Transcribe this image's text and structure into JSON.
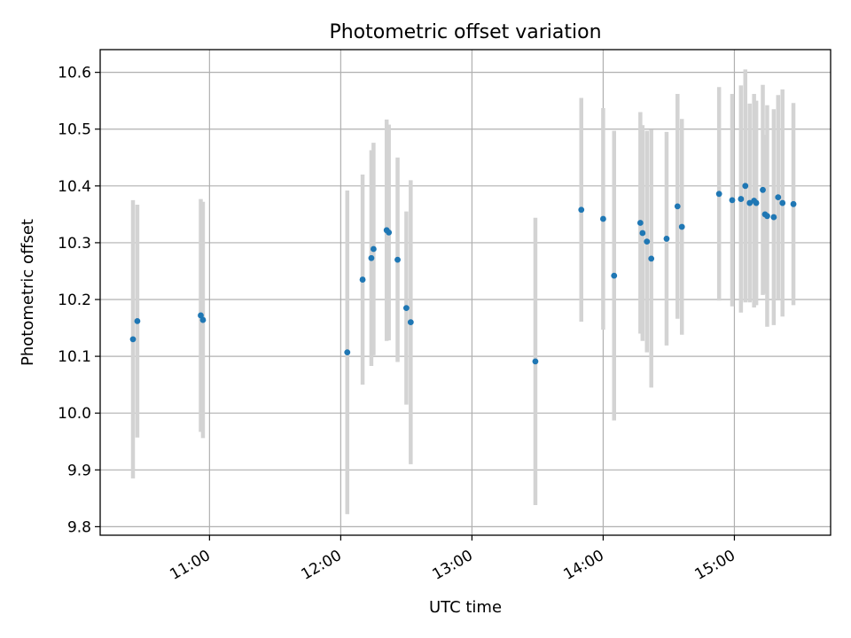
{
  "chart_data": {
    "type": "scatter",
    "title": "Photometric offset variation",
    "xlabel": "UTC time",
    "ylabel": "Photometric offset",
    "x_unit": "hours UTC",
    "xlim": [
      "10:10",
      "15:44"
    ],
    "ylim": [
      9.785,
      10.64
    ],
    "x_ticks": [
      "11:00",
      "12:00",
      "13:00",
      "14:00",
      "15:00"
    ],
    "y_ticks": [
      "9.8",
      "9.9",
      "10.0",
      "10.1",
      "10.2",
      "10.3",
      "10.4",
      "10.5",
      "10.6"
    ],
    "grid": true,
    "marker_color": "#1f77b4",
    "errorbar_color": "#d3d3d3",
    "points": [
      {
        "x": "10:25",
        "y": 10.13,
        "yerr": 0.245
      },
      {
        "x": "10:27",
        "y": 10.162,
        "yerr": 0.205
      },
      {
        "x": "10:56",
        "y": 10.172,
        "yerr": 0.205
      },
      {
        "x": "10:57",
        "y": 10.164,
        "yerr": 0.208
      },
      {
        "x": "12:03",
        "y": 10.107,
        "yerr": 0.285
      },
      {
        "x": "12:10",
        "y": 10.235,
        "yerr": 0.185
      },
      {
        "x": "12:14",
        "y": 10.273,
        "yerr": 0.19
      },
      {
        "x": "12:15",
        "y": 10.289,
        "yerr": 0.187
      },
      {
        "x": "12:21",
        "y": 10.322,
        "yerr": 0.195
      },
      {
        "x": "12:22",
        "y": 10.318,
        "yerr": 0.19
      },
      {
        "x": "12:26",
        "y": 10.27,
        "yerr": 0.18
      },
      {
        "x": "12:30",
        "y": 10.185,
        "yerr": 0.17
      },
      {
        "x": "12:32",
        "y": 10.16,
        "yerr": 0.25
      },
      {
        "x": "13:29",
        "y": 10.091,
        "yerr": 0.253
      },
      {
        "x": "13:50",
        "y": 10.358,
        "yerr": 0.197
      },
      {
        "x": "14:00",
        "y": 10.342,
        "yerr": 0.195
      },
      {
        "x": "14:05",
        "y": 10.242,
        "yerr": 0.255
      },
      {
        "x": "14:17",
        "y": 10.335,
        "yerr": 0.195
      },
      {
        "x": "14:18",
        "y": 10.317,
        "yerr": 0.19
      },
      {
        "x": "14:20",
        "y": 10.302,
        "yerr": 0.195
      },
      {
        "x": "14:22",
        "y": 10.272,
        "yerr": 0.227
      },
      {
        "x": "14:29",
        "y": 10.307,
        "yerr": 0.188
      },
      {
        "x": "14:34",
        "y": 10.364,
        "yerr": 0.198
      },
      {
        "x": "14:36",
        "y": 10.328,
        "yerr": 0.19
      },
      {
        "x": "14:53",
        "y": 10.386,
        "yerr": 0.188
      },
      {
        "x": "14:59",
        "y": 10.375,
        "yerr": 0.187
      },
      {
        "x": "15:03",
        "y": 10.377,
        "yerr": 0.2
      },
      {
        "x": "15:05",
        "y": 10.4,
        "yerr": 0.205
      },
      {
        "x": "15:07",
        "y": 10.37,
        "yerr": 0.175
      },
      {
        "x": "15:09",
        "y": 10.374,
        "yerr": 0.188
      },
      {
        "x": "15:10",
        "y": 10.37,
        "yerr": 0.18
      },
      {
        "x": "15:13",
        "y": 10.393,
        "yerr": 0.185
      },
      {
        "x": "15:14",
        "y": 10.35,
        "yerr": 0.14
      },
      {
        "x": "15:15",
        "y": 10.347,
        "yerr": 0.195
      },
      {
        "x": "15:18",
        "y": 10.345,
        "yerr": 0.19
      },
      {
        "x": "15:20",
        "y": 10.38,
        "yerr": 0.18
      },
      {
        "x": "15:22",
        "y": 10.37,
        "yerr": 0.2
      },
      {
        "x": "15:27",
        "y": 10.368,
        "yerr": 0.178
      }
    ]
  }
}
